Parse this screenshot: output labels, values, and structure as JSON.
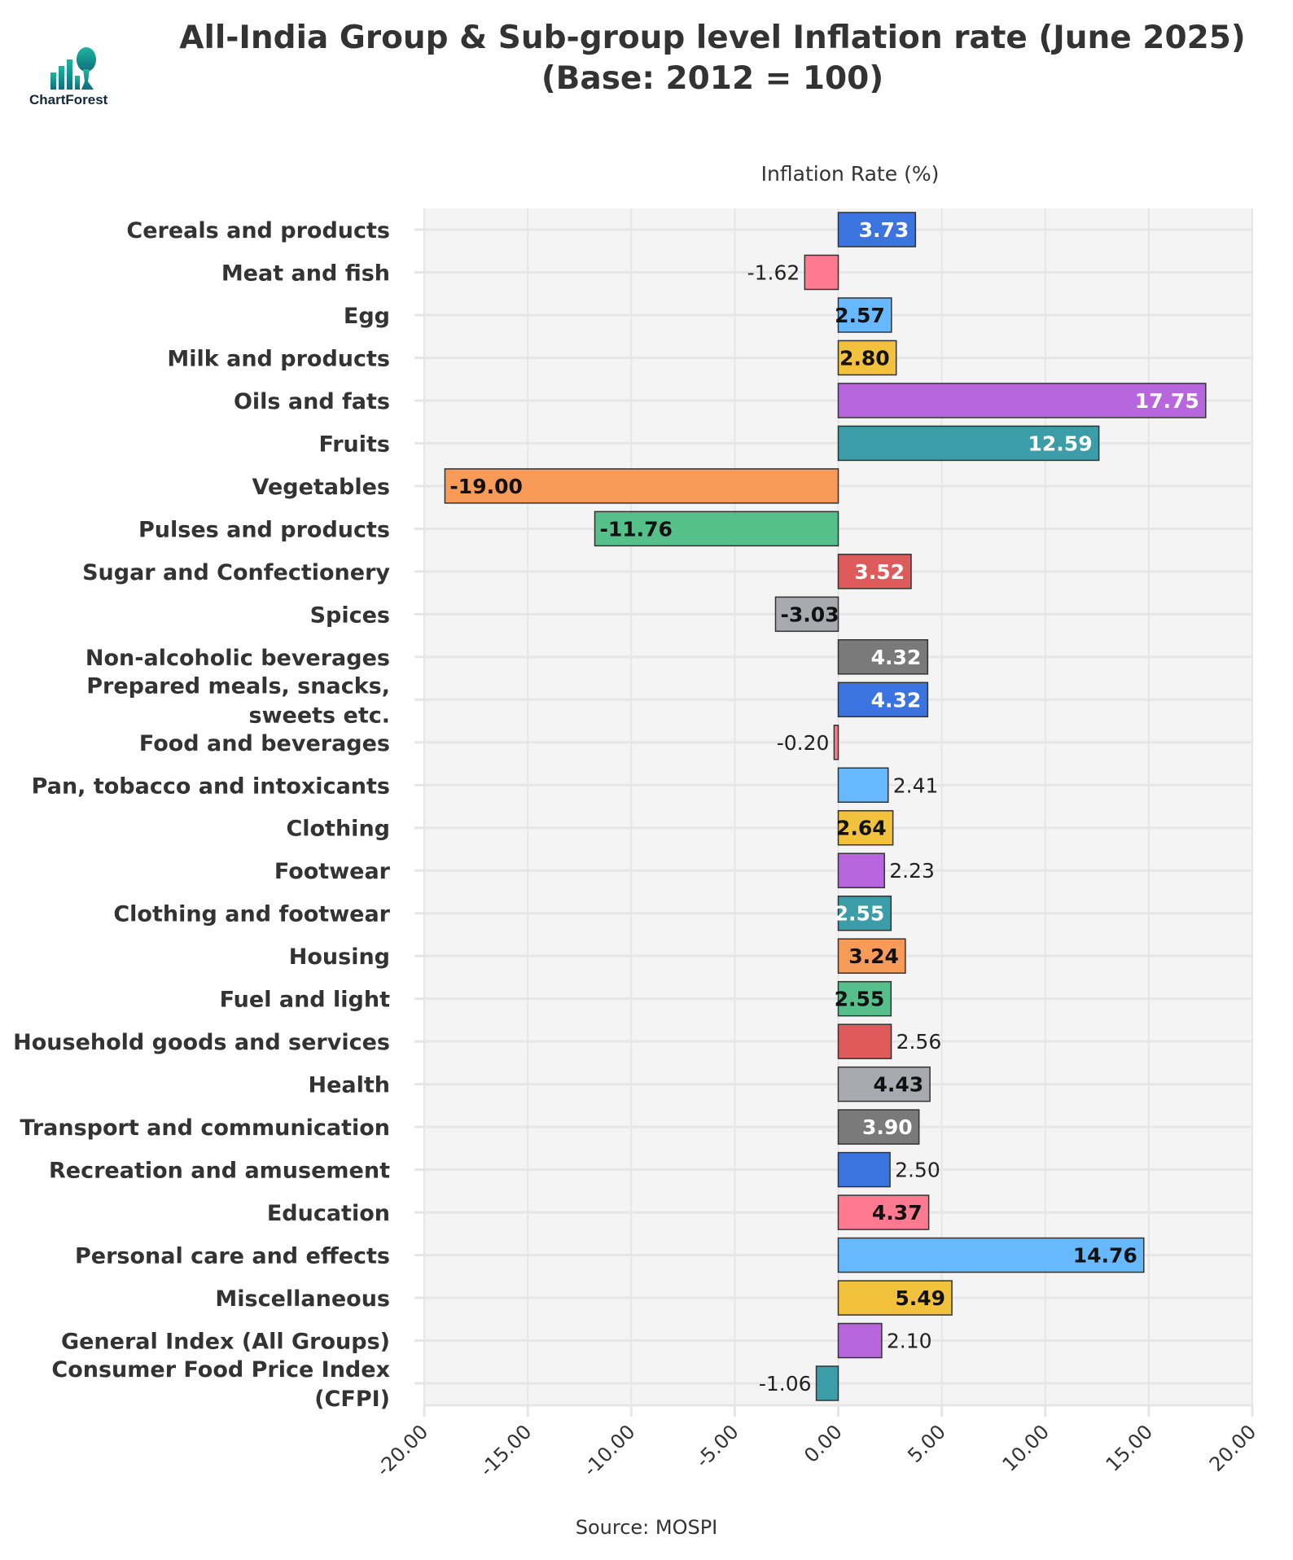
{
  "logo": {
    "text": "ChartForest",
    "colors": [
      "#1fb5a0",
      "#0e6d7d"
    ]
  },
  "title_lines": [
    "All-India Group & Sub-group level Inflation rate (June 2025)",
    "(Base: 2012 = 100)"
  ],
  "source": "Source: MOSPI",
  "chart_data": {
    "type": "bar",
    "orientation": "horizontal",
    "title": "All-India Group & Sub-group level Inflation rate (June 2025) (Base: 2012 = 100)",
    "xlabel": "Inflation Rate (%)",
    "ylabel": "",
    "xlim": [
      -20,
      20
    ],
    "xticks": [
      "-20.00",
      "-15.00",
      "-10.00",
      "-5.00",
      "0.00",
      "5.00",
      "10.00",
      "15.00",
      "20.00"
    ],
    "grid": true,
    "legend": "none",
    "categories": [
      "Cereals and products",
      "Meat and fish",
      "Egg",
      "Milk and products",
      "Oils and fats",
      "Fruits",
      "Vegetables",
      "Pulses and products",
      "Sugar and Confectionery",
      "Spices",
      "Non-alcoholic beverages",
      "Prepared meals, snacks, sweets etc.",
      "Food and beverages",
      "Pan, tobacco and intoxicants",
      "Clothing",
      "Footwear",
      "Clothing and footwear",
      "Housing",
      "Fuel and light",
      "Household goods and services",
      "Health",
      "Transport and communication",
      "Recreation and amusement",
      "Education",
      "Personal care and effects",
      "Miscellaneous",
      "General Index (All Groups)",
      "Consumer Food Price Index (CFPI)"
    ],
    "values": [
      3.73,
      -1.62,
      2.57,
      2.8,
      17.75,
      12.59,
      -19.0,
      -11.76,
      3.52,
      -3.03,
      4.32,
      4.32,
      -0.2,
      2.41,
      2.64,
      2.23,
      2.55,
      3.24,
      2.55,
      2.56,
      4.43,
      3.9,
      2.5,
      4.37,
      14.76,
      5.49,
      2.1,
      -1.06
    ],
    "labels": [
      "3.73",
      "-1.62",
      "2.57",
      "2.80",
      "17.75",
      "12.59",
      "-19.00",
      "-11.76",
      "3.52",
      "-3.03",
      "4.32",
      "4.32",
      "-0.20",
      "2.41",
      "2.64",
      "2.23",
      "2.55",
      "3.24",
      "2.55",
      "2.56",
      "4.43",
      "3.90",
      "2.50",
      "4.37",
      "14.76",
      "5.49",
      "2.10",
      "-1.06"
    ],
    "palette": [
      "#3b73e0",
      "#ff7a90",
      "#66b8ff",
      "#f2c23c",
      "#b866dd",
      "#3a9da8",
      "#f89a58",
      "#55c08a",
      "#df5a5a",
      "#a8aab0",
      "#7a7a7a"
    ]
  }
}
